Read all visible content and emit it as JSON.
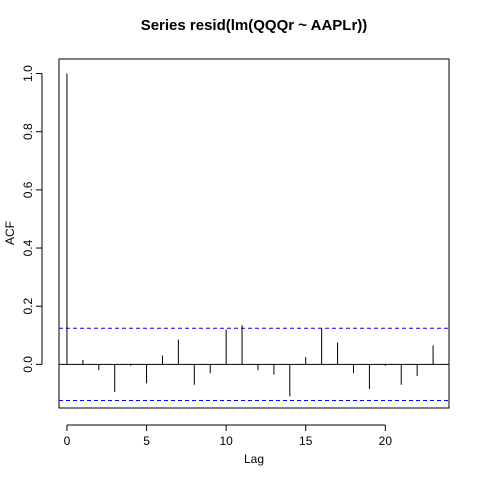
{
  "chart_data": {
    "type": "bar",
    "title": "Series  resid(lm(QQQr ~ AAPLr))",
    "xlabel": "Lag",
    "ylabel": "ACF",
    "xlim": [
      -0.5,
      24
    ],
    "ylim": [
      -0.15,
      1.05
    ],
    "x_ticks": [
      0,
      5,
      10,
      15,
      20
    ],
    "y_ticks": [
      0.0,
      0.2,
      0.4,
      0.6,
      0.8,
      1.0
    ],
    "x_tick_labels": [
      "0",
      "5",
      "10",
      "15",
      "20"
    ],
    "y_tick_labels": [
      "0.0",
      "0.2",
      "0.4",
      "0.6",
      "0.8",
      "1.0"
    ],
    "lags": [
      0,
      1,
      2,
      3,
      4,
      5,
      6,
      7,
      8,
      9,
      10,
      11,
      12,
      13,
      14,
      15,
      16,
      17,
      18,
      19,
      20,
      21,
      22,
      23
    ],
    "values": [
      1.0,
      0.015,
      -0.02,
      -0.095,
      -0.005,
      -0.065,
      0.03,
      0.085,
      -0.07,
      -0.03,
      0.12,
      0.135,
      -0.02,
      -0.035,
      -0.11,
      0.025,
      0.125,
      0.075,
      -0.03,
      -0.085,
      -0.005,
      -0.07,
      -0.04,
      0.065
    ],
    "confidence_band": 0.124,
    "confidence_color": "#0000ff",
    "grid": false,
    "legend": "none"
  }
}
